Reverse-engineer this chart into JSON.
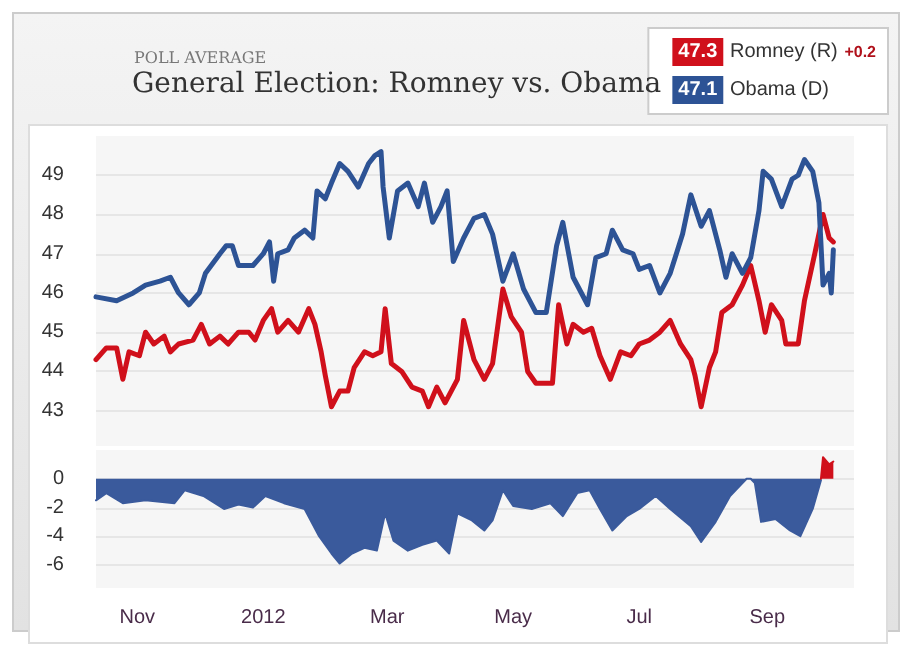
{
  "chart_data": [
    {
      "type": "line",
      "subtitle": "POLL AVERAGE",
      "title": "General Election: Romney vs. Obama",
      "annotations": [
        "47.3",
        "+0.2",
        "47.1"
      ],
      "xlim": [
        "2011-10-12",
        "2012-10-13"
      ],
      "ylim": [
        42.1,
        50
      ],
      "yticks": [
        43,
        44,
        45,
        46,
        47,
        48,
        49
      ],
      "tick_labels": "y",
      "grid": "y",
      "legend": "top right",
      "marker": "none",
      "series": [
        {
          "name": "Romney (R)",
          "color": "#d0101b",
          "x": [
            "2011-10-12",
            "2011-10-17",
            "2011-10-22",
            "2011-10-25",
            "2011-10-28",
            "2011-11-02",
            "2011-11-05",
            "2011-11-09",
            "2011-11-14",
            "2011-11-17",
            "2011-11-21",
            "2011-11-28",
            "2011-12-02",
            "2011-12-06",
            "2011-12-11",
            "2011-12-15",
            "2011-12-20",
            "2011-12-25",
            "2011-12-28",
            "2012-01-01",
            "2012-01-05",
            "2012-01-08",
            "2012-01-13",
            "2012-01-18",
            "2012-01-23",
            "2012-01-26",
            "2012-01-29",
            "2012-01-31",
            "2012-02-03",
            "2012-02-07",
            "2012-02-11",
            "2012-02-14",
            "2012-02-19",
            "2012-02-23",
            "2012-02-27",
            "2012-02-29",
            "2012-03-03",
            "2012-03-08",
            "2012-03-13",
            "2012-03-18",
            "2012-03-21",
            "2012-03-25",
            "2012-03-29",
            "2012-04-04",
            "2012-04-07",
            "2012-04-12",
            "2012-04-17",
            "2012-04-21",
            "2012-04-26",
            "2012-04-30",
            "2012-05-05",
            "2012-05-08",
            "2012-05-12",
            "2012-05-20",
            "2012-05-23",
            "2012-05-27",
            "2012-05-30",
            "2012-06-04",
            "2012-06-08",
            "2012-06-12",
            "2012-06-17",
            "2012-06-22",
            "2012-06-27",
            "2012-07-01",
            "2012-07-06",
            "2012-07-11",
            "2012-07-16",
            "2012-07-21",
            "2012-07-26",
            "2012-07-28",
            "2012-07-31",
            "2012-08-04",
            "2012-08-07",
            "2012-08-10",
            "2012-08-15",
            "2012-08-20",
            "2012-08-24",
            "2012-08-28",
            "2012-08-31",
            "2012-09-03",
            "2012-09-08",
            "2012-09-10",
            "2012-09-16",
            "2012-09-19",
            "2012-09-24",
            "2012-09-28",
            "2012-10-01",
            "2012-10-03"
          ],
          "values": [
            44.3,
            44.6,
            44.6,
            43.8,
            44.5,
            44.4,
            45.0,
            44.7,
            44.9,
            44.5,
            44.7,
            44.8,
            45.2,
            44.7,
            44.9,
            44.7,
            45.0,
            45.0,
            44.8,
            45.3,
            45.6,
            45.0,
            45.3,
            45.0,
            45.6,
            45.2,
            44.5,
            43.9,
            43.1,
            43.5,
            43.5,
            44.1,
            44.5,
            44.4,
            44.5,
            45.6,
            44.2,
            44.0,
            43.6,
            43.5,
            43.1,
            43.6,
            43.2,
            43.8,
            45.3,
            44.3,
            43.8,
            44.2,
            46.1,
            45.4,
            45.0,
            44.0,
            43.7,
            43.7,
            45.7,
            44.7,
            45.2,
            45.0,
            45.1,
            44.4,
            43.8,
            44.5,
            44.4,
            44.7,
            44.8,
            45.0,
            45.3,
            44.7,
            44.3,
            43.9,
            43.1,
            44.1,
            44.5,
            45.5,
            45.7,
            46.2,
            46.7,
            45.8,
            45.0,
            45.7,
            45.3,
            44.7,
            44.7,
            45.8,
            47.0,
            48.0,
            47.4,
            47.3
          ]
        },
        {
          "name": "Obama (D)",
          "color": "#2d5395",
          "x": [
            "2011-10-12",
            "2011-10-22",
            "2011-10-30",
            "2011-11-05",
            "2011-11-12",
            "2011-11-17",
            "2011-11-21",
            "2011-11-26",
            "2011-12-01",
            "2011-12-04",
            "2011-12-11",
            "2011-12-14",
            "2011-12-17",
            "2011-12-20",
            "2011-12-27",
            "2012-01-01",
            "2012-01-04",
            "2012-01-06",
            "2012-01-08",
            "2012-01-13",
            "2012-01-16",
            "2012-01-21",
            "2012-01-25",
            "2012-01-27",
            "2012-01-31",
            "2012-02-03",
            "2012-02-07",
            "2012-02-11",
            "2012-02-16",
            "2012-02-21",
            "2012-02-24",
            "2012-02-27",
            "2012-02-28",
            "2012-03-02",
            "2012-03-06",
            "2012-03-11",
            "2012-03-16",
            "2012-03-19",
            "2012-03-23",
            "2012-03-27",
            "2012-03-30",
            "2012-04-02",
            "2012-04-07",
            "2012-04-12",
            "2012-04-17",
            "2012-04-21",
            "2012-04-26",
            "2012-05-01",
            "2012-05-06",
            "2012-05-12",
            "2012-05-17",
            "2012-05-22",
            "2012-05-25",
            "2012-05-30",
            "2012-06-06",
            "2012-06-10",
            "2012-06-15",
            "2012-06-18",
            "2012-06-23",
            "2012-06-28",
            "2012-07-01",
            "2012-07-06",
            "2012-07-11",
            "2012-07-16",
            "2012-07-22",
            "2012-07-26",
            "2012-07-31",
            "2012-08-04",
            "2012-08-09",
            "2012-08-12",
            "2012-08-15",
            "2012-08-20",
            "2012-08-24",
            "2012-08-28",
            "2012-08-30",
            "2012-09-03",
            "2012-09-08",
            "2012-09-13",
            "2012-09-16",
            "2012-09-19",
            "2012-09-23",
            "2012-09-26",
            "2012-09-28",
            "2012-10-01",
            "2012-10-02",
            "2012-10-03"
          ],
          "values": [
            45.9,
            45.8,
            46.0,
            46.2,
            46.3,
            46.4,
            46.0,
            45.7,
            46.0,
            46.5,
            47.0,
            47.2,
            47.2,
            46.7,
            46.7,
            47.0,
            47.3,
            46.3,
            47.0,
            47.1,
            47.4,
            47.6,
            47.4,
            48.6,
            48.4,
            48.8,
            49.3,
            49.1,
            48.7,
            49.3,
            49.5,
            49.6,
            48.7,
            47.4,
            48.6,
            48.8,
            48.2,
            48.8,
            47.8,
            48.2,
            48.6,
            46.8,
            47.4,
            47.9,
            48.0,
            47.5,
            46.3,
            47.0,
            46.1,
            45.5,
            45.5,
            47.2,
            47.8,
            46.4,
            45.7,
            46.9,
            47.0,
            47.6,
            47.1,
            47.0,
            46.6,
            46.7,
            46.0,
            46.5,
            47.5,
            48.5,
            47.7,
            48.1,
            47.1,
            46.4,
            47.0,
            46.5,
            46.9,
            48.1,
            49.1,
            48.9,
            48.2,
            48.9,
            49.0,
            49.4,
            49.1,
            48.3,
            46.2,
            46.5,
            46.0,
            47.1
          ]
        }
      ]
    },
    {
      "type": "area",
      "xlim": [
        "2011-10-12",
        "2012-10-13"
      ],
      "xticks": [
        {
          "value": "2011-11-01",
          "label": "Nov"
        },
        {
          "value": "2012-01-01",
          "label": "2012"
        },
        {
          "value": "2012-03-01",
          "label": "Mar"
        },
        {
          "value": "2012-05-01",
          "label": "May"
        },
        {
          "value": "2012-07-01",
          "label": "Jul"
        },
        {
          "value": "2012-09-01",
          "label": "Sep"
        }
      ],
      "ylim": [
        -7.6,
        2
      ],
      "yticks": [
        0,
        -2,
        -4,
        -6
      ],
      "grid": "y",
      "marker": "none",
      "series": [
        {
          "color": "#3a5a9c",
          "x": [
            "2011-10-12",
            "2011-10-17",
            "2011-10-25",
            "2011-11-05",
            "2011-11-19",
            "2011-11-24",
            "2011-12-03",
            "2011-12-13",
            "2011-12-20",
            "2011-12-27",
            "2012-01-02",
            "2012-01-11",
            "2012-01-21",
            "2012-01-28",
            "2012-02-03",
            "2012-02-07",
            "2012-02-13",
            "2012-02-19",
            "2012-02-25",
            "2012-02-29",
            "2012-03-04",
            "2012-03-11",
            "2012-03-18",
            "2012-03-25",
            "2012-03-31",
            "2012-04-04",
            "2012-04-11",
            "2012-04-17",
            "2012-04-21",
            "2012-04-26",
            "2012-05-01",
            "2012-05-10",
            "2012-05-19",
            "2012-05-25",
            "2012-06-01",
            "2012-06-07",
            "2012-06-12",
            "2012-06-18",
            "2012-06-25",
            "2012-07-01",
            "2012-07-09",
            "2012-07-16",
            "2012-07-26",
            "2012-07-31",
            "2012-08-07",
            "2012-08-14",
            "2012-08-20",
            "2012-08-22",
            "2012-08-24",
            "2012-08-26",
            "2012-08-29",
            "2012-09-05",
            "2012-09-12",
            "2012-09-17",
            "2012-09-23",
            "2012-09-27"
          ],
          "values": [
            -1.5,
            -1.0,
            -1.7,
            -1.5,
            -1.7,
            -0.8,
            -1.2,
            -2.1,
            -1.8,
            -2.0,
            -1.2,
            -1.7,
            -2.1,
            -4.0,
            -5.2,
            -5.9,
            -5.2,
            -4.8,
            -5.0,
            -2.4,
            -4.3,
            -5.0,
            -4.6,
            -4.3,
            -5.2,
            -2.4,
            -2.9,
            -3.6,
            -2.9,
            -0.8,
            -1.9,
            -2.1,
            -1.7,
            -2.6,
            -1.0,
            -0.8,
            -2.1,
            -3.6,
            -2.6,
            -2.1,
            -1.2,
            -2.1,
            -3.3,
            -4.4,
            -3.0,
            -1.2,
            -0.3,
            0,
            0,
            -0.3,
            -3.0,
            -2.8,
            -3.6,
            -4.0,
            -2.1,
            -0.1
          ]
        },
        {
          "color": "#d0101b",
          "x": [
            "2012-09-27",
            "2012-09-28",
            "2012-10-01",
            "2012-10-03"
          ],
          "values": [
            0,
            1.5,
            1.0,
            1.2
          ]
        }
      ]
    }
  ]
}
